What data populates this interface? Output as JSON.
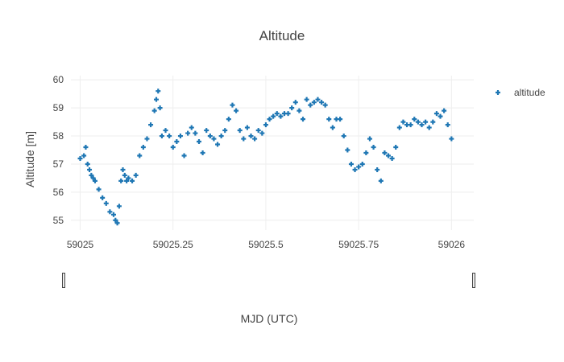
{
  "chart_data": {
    "type": "scatter",
    "title": "Altitude",
    "xlabel": "MJD (UTC)",
    "ylabel": "Altitude [m]",
    "xlim": [
      59024.975,
      59026.06
    ],
    "ylim": [
      54.65,
      60.15
    ],
    "x_ticks": [
      59025,
      59025.25,
      59025.5,
      59025.75,
      59026
    ],
    "x_tick_labels": [
      "59025",
      "59025.25",
      "59025.5",
      "59025.75",
      "59026"
    ],
    "y_ticks": [
      55,
      56,
      57,
      58,
      59,
      60
    ],
    "y_tick_labels": [
      "55",
      "56",
      "57",
      "58",
      "59",
      "60"
    ],
    "grid": true,
    "legend_position": "top-right",
    "marker": "cross",
    "color": "#1f77b4",
    "series": [
      {
        "name": "altitude",
        "x": [
          59025.0,
          59025.01,
          59025.015,
          59025.02,
          59025.025,
          59025.03,
          59025.035,
          59025.04,
          59025.05,
          59025.06,
          59025.07,
          59025.08,
          59025.09,
          59025.095,
          59025.1,
          59025.105,
          59025.11,
          59025.115,
          59025.12,
          59025.125,
          59025.13,
          59025.14,
          59025.15,
          59025.16,
          59025.17,
          59025.18,
          59025.19,
          59025.2,
          59025.205,
          59025.21,
          59025.215,
          59025.22,
          59025.23,
          59025.24,
          59025.25,
          59025.26,
          59025.27,
          59025.28,
          59025.29,
          59025.3,
          59025.31,
          59025.32,
          59025.33,
          59025.34,
          59025.35,
          59025.36,
          59025.37,
          59025.38,
          59025.39,
          59025.4,
          59025.41,
          59025.42,
          59025.43,
          59025.44,
          59025.45,
          59025.46,
          59025.47,
          59025.48,
          59025.49,
          59025.5,
          59025.51,
          59025.52,
          59025.53,
          59025.54,
          59025.55,
          59025.56,
          59025.57,
          59025.58,
          59025.59,
          59025.6,
          59025.61,
          59025.62,
          59025.63,
          59025.64,
          59025.65,
          59025.66,
          59025.67,
          59025.68,
          59025.69,
          59025.7,
          59025.71,
          59025.72,
          59025.73,
          59025.74,
          59025.75,
          59025.76,
          59025.77,
          59025.78,
          59025.79,
          59025.8,
          59025.81,
          59025.82,
          59025.83,
          59025.84,
          59025.85,
          59025.86,
          59025.87,
          59025.88,
          59025.89,
          59025.9,
          59025.91,
          59025.92,
          59025.93,
          59025.94,
          59025.95,
          59025.96,
          59025.97,
          59025.98,
          59025.99,
          59026.0
        ],
        "y": [
          57.2,
          57.3,
          57.6,
          57.0,
          56.8,
          56.6,
          56.5,
          56.4,
          56.1,
          55.8,
          55.6,
          55.3,
          55.2,
          55.0,
          54.9,
          55.5,
          56.4,
          56.8,
          56.6,
          56.4,
          56.5,
          56.4,
          56.6,
          57.3,
          57.6,
          57.9,
          58.4,
          58.9,
          59.3,
          59.6,
          59.0,
          58.0,
          58.2,
          58.0,
          57.6,
          57.8,
          58.0,
          57.3,
          58.1,
          58.3,
          58.1,
          57.8,
          57.4,
          58.2,
          58.0,
          57.9,
          57.7,
          58.0,
          58.2,
          58.6,
          59.1,
          58.9,
          58.2,
          57.9,
          58.3,
          58.0,
          57.9,
          58.2,
          58.1,
          58.4,
          58.6,
          58.7,
          58.8,
          58.7,
          58.8,
          58.8,
          59.0,
          59.2,
          58.9,
          58.6,
          59.3,
          59.1,
          59.2,
          59.3,
          59.2,
          59.1,
          58.6,
          58.3,
          58.6,
          58.6,
          58.0,
          57.5,
          57.0,
          56.8,
          56.9,
          57.0,
          57.4,
          57.9,
          57.6,
          56.8,
          56.4,
          57.4,
          57.3,
          57.2,
          57.6,
          58.3,
          58.5,
          58.4,
          58.4,
          58.6,
          58.5,
          58.4,
          58.5,
          58.3,
          58.5,
          58.8,
          58.7,
          58.9,
          58.4,
          57.9
        ]
      }
    ]
  }
}
